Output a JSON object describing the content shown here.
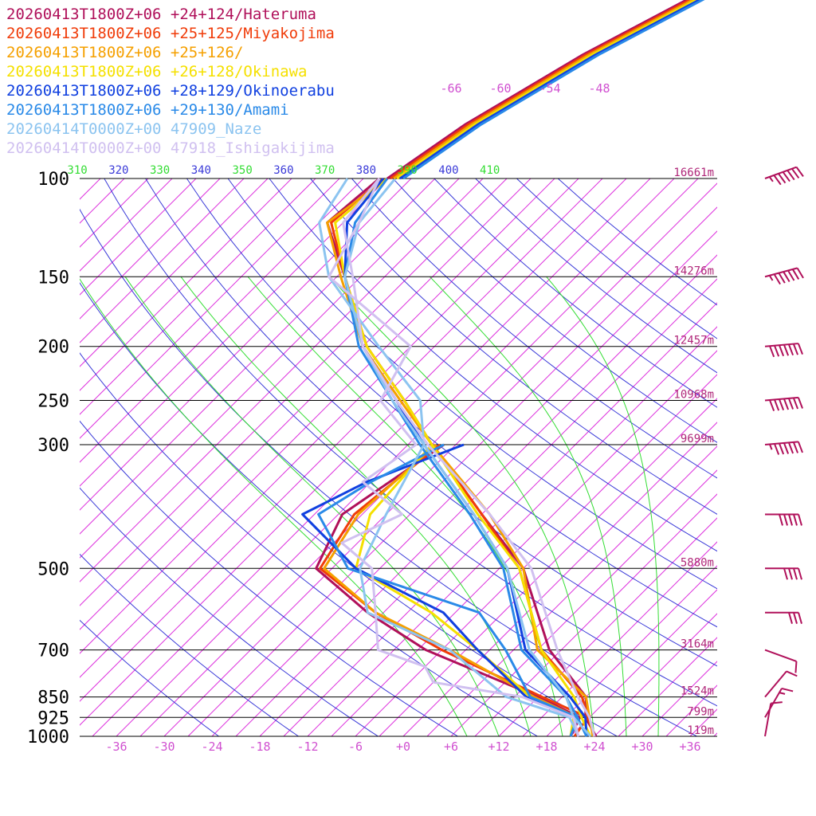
{
  "chart_data": {
    "type": "line",
    "chart_kind": "skew-T log-P diagram",
    "legend": [
      {
        "text": "20260413T1800Z+06 +24+124/Hateruma",
        "color": "#b0105a"
      },
      {
        "text": "20260413T1800Z+06 +25+125/Miyakojima",
        "color": "#f03c0a"
      },
      {
        "text": "20260413T1800Z+06 +25+126/",
        "color": "#f5a000"
      },
      {
        "text": "20260413T1800Z+06 +26+128/Okinawa",
        "color": "#f5e000"
      },
      {
        "text": "20260413T1800Z+06 +28+129/Okinoerabu",
        "color": "#1040e0"
      },
      {
        "text": "20260413T1800Z+06 +29+130/Amami",
        "color": "#2a8ae8"
      },
      {
        "text": "20260414T0000Z+00 47909_Naze",
        "color": "#8cc4f0"
      },
      {
        "text": "20260414T0000Z+00 47918_Ishigakijima",
        "color": "#d0c0f0"
      }
    ],
    "pressure_levels": [
      {
        "label": "100",
        "p": 100,
        "height": "16661m"
      },
      {
        "label": "150",
        "p": 150,
        "height": "14276m"
      },
      {
        "label": "200",
        "p": 200,
        "height": "12457m"
      },
      {
        "label": "250",
        "p": 250,
        "height": "10968m"
      },
      {
        "label": "300",
        "p": 300,
        "height": "9699m"
      },
      {
        "label": "500",
        "p": 500,
        "height": "5880m"
      },
      {
        "label": "700",
        "p": 700,
        "height": "3164m"
      },
      {
        "label": "850",
        "p": 850,
        "height": "1524m"
      },
      {
        "label": "925",
        "p": 925,
        "height": "799m"
      },
      {
        "label": "1000",
        "p": 1000,
        "height": "119m"
      }
    ],
    "temperature_ticks": [
      "-36",
      "-30",
      "-24",
      "-18",
      "-12",
      "-6",
      "+0",
      "+6",
      "+12",
      "+18",
      "+24",
      "+30",
      "+36"
    ],
    "temperature_tick_values": [
      -36,
      -30,
      -24,
      -18,
      -12,
      -6,
      0,
      6,
      12,
      18,
      24,
      30,
      36
    ],
    "upper_temperature_ticks": [
      "-66",
      "-60",
      "-54",
      "-48"
    ],
    "upper_temperature_values": [
      -66,
      -60,
      -54,
      -48
    ],
    "theta_labels": [
      {
        "text": "310",
        "value": 310,
        "color": "#33dd33"
      },
      {
        "text": "320",
        "value": 320,
        "color": "#3a3ad8"
      },
      {
        "text": "330",
        "value": 330,
        "color": "#33dd33"
      },
      {
        "text": "340",
        "value": 340,
        "color": "#3a3ad8"
      },
      {
        "text": "350",
        "value": 350,
        "color": "#33dd33"
      },
      {
        "text": "360",
        "value": 360,
        "color": "#3a3ad8"
      },
      {
        "text": "370",
        "value": 370,
        "color": "#33dd33"
      },
      {
        "text": "380",
        "value": 380,
        "color": "#3a3ad8"
      },
      {
        "text": "390",
        "value": 390,
        "color": "#33dd33"
      },
      {
        "text": "400",
        "value": 400,
        "color": "#3a3ad8"
      },
      {
        "text": "410",
        "value": 410,
        "color": "#33dd33"
      }
    ],
    "dry_adiabats_K": [
      250,
      260,
      270,
      280,
      290,
      300,
      310,
      320,
      330,
      340,
      350,
      360,
      370,
      380,
      390,
      400,
      410,
      420,
      430
    ],
    "moist_adiabats_C": [
      8,
      12,
      16,
      20,
      24,
      28,
      32
    ],
    "isotherm_range_C": [
      -120,
      40
    ],
    "pressure_range_hPa": [
      100,
      1000
    ],
    "colors": {
      "isotherm": "#dd33dd",
      "dry_adiabat": "#3a3ad8",
      "moist_adiabat": "#33dd33",
      "isobar": "#000000",
      "wind_barb": "#b0105a"
    },
    "series": [
      {
        "name": "20260413T1800Z+06 +24+124/Hateruma",
        "color": "#b0105a",
        "temperature": [
          [
            1000,
            24.2
          ],
          [
            925,
            20.5
          ],
          [
            850,
            18.0
          ],
          [
            700,
            7.5
          ],
          [
            500,
            -6.0
          ],
          [
            400,
            -18.0
          ],
          [
            300,
            -33.0
          ],
          [
            250,
            -42.0
          ],
          [
            200,
            -53.5
          ],
          [
            150,
            -65.0
          ],
          [
            120,
            -74.0
          ],
          [
            100,
            -73.0
          ]
        ],
        "dewpoint": [
          [
            1000,
            21.0
          ],
          [
            925,
            19.8
          ],
          [
            850,
            12.0
          ],
          [
            700,
            -8.0
          ],
          [
            600,
            -20.0
          ],
          [
            500,
            -32.0
          ],
          [
            400,
            -35.5
          ],
          [
            300,
            -31.5
          ]
        ]
      },
      {
        "name": "20260413T1800Z+06 +25+125/Miyakojima",
        "color": "#f03c0a",
        "temperature": [
          [
            1000,
            24.0
          ],
          [
            925,
            20.8
          ],
          [
            850,
            17.5
          ],
          [
            700,
            6.5
          ],
          [
            500,
            -6.5
          ],
          [
            400,
            -18.0
          ],
          [
            300,
            -33.0
          ],
          [
            250,
            -42.0
          ],
          [
            200,
            -53.5
          ],
          [
            150,
            -65.0
          ],
          [
            120,
            -73.5
          ],
          [
            100,
            -72.5
          ]
        ],
        "dewpoint": [
          [
            1000,
            21.5
          ],
          [
            925,
            20.8
          ],
          [
            850,
            12.5
          ],
          [
            700,
            -6.0
          ],
          [
            600,
            -19.0
          ],
          [
            500,
            -31.5
          ],
          [
            400,
            -34.0
          ],
          [
            300,
            -32.0
          ]
        ]
      },
      {
        "name": "20260413T1800Z+06 +25+126/",
        "color": "#f5a000",
        "temperature": [
          [
            1000,
            23.8
          ],
          [
            925,
            21.0
          ],
          [
            850,
            18.0
          ],
          [
            700,
            6.0
          ],
          [
            500,
            -6.0
          ],
          [
            400,
            -17.0
          ],
          [
            300,
            -33.0
          ],
          [
            250,
            -42.5
          ],
          [
            200,
            -54.0
          ],
          [
            150,
            -65.5
          ],
          [
            120,
            -74.0
          ],
          [
            100,
            -72.0
          ]
        ],
        "dewpoint": [
          [
            1000,
            21.0
          ],
          [
            925,
            19.5
          ],
          [
            850,
            11.5
          ],
          [
            700,
            -5.0
          ],
          [
            600,
            -19.0
          ],
          [
            500,
            -31.0
          ],
          [
            400,
            -33.5
          ],
          [
            300,
            -32.5
          ]
        ]
      },
      {
        "name": "20260413T1800Z+06 +26+128/Okinawa",
        "color": "#f5e000",
        "temperature": [
          [
            1000,
            23.5
          ],
          [
            925,
            20.0
          ],
          [
            850,
            16.5
          ],
          [
            700,
            6.5
          ],
          [
            500,
            -6.5
          ],
          [
            400,
            -18.5
          ],
          [
            300,
            -33.0
          ],
          [
            250,
            -42.0
          ],
          [
            200,
            -53.5
          ],
          [
            150,
            -65.0
          ],
          [
            120,
            -73.0
          ],
          [
            100,
            -72.0
          ]
        ],
        "dewpoint": [
          [
            1000,
            21.0
          ],
          [
            925,
            19.0
          ],
          [
            850,
            11.0
          ],
          [
            700,
            -1.5
          ],
          [
            600,
            -12.0
          ],
          [
            500,
            -27.0
          ],
          [
            400,
            -32.0
          ],
          [
            300,
            -33.0
          ]
        ]
      },
      {
        "name": "20260413T1800Z+06 +28+129/Okinoerabu",
        "color": "#1040e0",
        "temperature": [
          [
            1000,
            23.0
          ],
          [
            925,
            20.5
          ],
          [
            850,
            16.0
          ],
          [
            700,
            4.5
          ],
          [
            500,
            -8.0
          ],
          [
            400,
            -19.0
          ],
          [
            300,
            -34.0
          ],
          [
            250,
            -43.0
          ],
          [
            200,
            -54.0
          ],
          [
            150,
            -65.0
          ],
          [
            120,
            -71.5
          ],
          [
            100,
            -72.5
          ]
        ],
        "dewpoint": [
          [
            1000,
            21.0
          ],
          [
            925,
            19.5
          ],
          [
            850,
            10.5
          ],
          [
            700,
            -1.5
          ],
          [
            600,
            -10.5
          ],
          [
            500,
            -27.0
          ],
          [
            400,
            -40.5
          ],
          [
            350,
            -36.5
          ],
          [
            300,
            -29.0
          ]
        ]
      },
      {
        "name": "20260413T1800Z+06 +29+130/Amami",
        "color": "#2a8ae8",
        "temperature": [
          [
            1000,
            23.0
          ],
          [
            925,
            19.5
          ],
          [
            850,
            15.5
          ],
          [
            700,
            4.0
          ],
          [
            500,
            -8.5
          ],
          [
            400,
            -19.5
          ],
          [
            300,
            -34.5
          ],
          [
            250,
            -43.5
          ],
          [
            200,
            -54.5
          ],
          [
            150,
            -65.0
          ],
          [
            120,
            -70.5
          ],
          [
            100,
            -72.0
          ]
        ],
        "dewpoint": [
          [
            1000,
            21.0
          ],
          [
            925,
            19.5
          ],
          [
            850,
            11.0
          ],
          [
            700,
            2.0
          ],
          [
            600,
            -6.0
          ],
          [
            500,
            -28.0
          ],
          [
            400,
            -38.5
          ],
          [
            350,
            -36.0
          ],
          [
            300,
            -31.5
          ]
        ]
      },
      {
        "name": "20260414T0000Z+00 47909_Naze",
        "color": "#8cc4f0",
        "temperature": [
          [
            1000,
            23.5
          ],
          [
            925,
            19.0
          ],
          [
            850,
            15.5
          ],
          [
            700,
            5.0
          ],
          [
            500,
            -8.0
          ],
          [
            400,
            -19.0
          ],
          [
            300,
            -34.0
          ],
          [
            250,
            -43.5
          ],
          [
            200,
            -54.0
          ],
          [
            150,
            -65.0
          ],
          [
            120,
            -70.0
          ],
          [
            100,
            -71.0
          ]
        ],
        "dewpoint": [
          [
            1000,
            22.0
          ],
          [
            925,
            18.5
          ],
          [
            850,
            8.0
          ],
          [
            700,
            -5.0
          ],
          [
            600,
            -20.0
          ],
          [
            500,
            -26.5
          ],
          [
            400,
            -30.0
          ],
          [
            300,
            -34.0
          ],
          [
            250,
            -40.0
          ],
          [
            200,
            -52.0
          ],
          [
            150,
            -67.0
          ],
          [
            120,
            -75.0
          ],
          [
            100,
            -77.0
          ]
        ]
      },
      {
        "name": "20260414T0000Z+00 47918_Ishigakijima",
        "color": "#d0c0f0",
        "temperature": [
          [
            1000,
            24.0
          ],
          [
            925,
            21.0
          ],
          [
            850,
            17.0
          ],
          [
            700,
            8.5
          ],
          [
            500,
            -5.0
          ],
          [
            400,
            -17.0
          ],
          [
            300,
            -33.5
          ],
          [
            250,
            -43.0
          ],
          [
            200,
            -54.0
          ],
          [
            150,
            -64.0
          ],
          [
            120,
            -72.0
          ],
          [
            100,
            -73.0
          ]
        ],
        "dewpoint": [
          [
            1000,
            22.0
          ],
          [
            925,
            19.0
          ],
          [
            850,
            10.0
          ],
          [
            800,
            -3.0
          ],
          [
            750,
            -6.0
          ],
          [
            700,
            -14.0
          ],
          [
            600,
            -19.0
          ],
          [
            500,
            -25.0
          ],
          [
            450,
            -32.0
          ],
          [
            400,
            -28.0
          ],
          [
            350,
            -37.0
          ],
          [
            300,
            -35.0
          ],
          [
            250,
            -45.0
          ],
          [
            200,
            -48.0
          ],
          [
            150,
            -67.0
          ],
          [
            120,
            -70.0
          ],
          [
            100,
            -73.0
          ]
        ]
      }
    ],
    "wind_barbs": [
      {
        "p": 100,
        "speed_kt": 65,
        "dir_deg": 250
      },
      {
        "p": 150,
        "speed_kt": 65,
        "dir_deg": 255
      },
      {
        "p": 200,
        "speed_kt": 70,
        "dir_deg": 265
      },
      {
        "p": 250,
        "speed_kt": 70,
        "dir_deg": 265
      },
      {
        "p": 300,
        "speed_kt": 65,
        "dir_deg": 265
      },
      {
        "p": 400,
        "speed_kt": 50,
        "dir_deg": 270
      },
      {
        "p": 500,
        "speed_kt": 40,
        "dir_deg": 270
      },
      {
        "p": 600,
        "speed_kt": 30,
        "dir_deg": 270
      },
      {
        "p": 700,
        "speed_kt": 10,
        "dir_deg": 290
      },
      {
        "p": 850,
        "speed_kt": 10,
        "dir_deg": 220
      },
      {
        "p": 925,
        "speed_kt": 15,
        "dir_deg": 210
      },
      {
        "p": 1000,
        "speed_kt": 10,
        "dir_deg": 190
      }
    ]
  }
}
